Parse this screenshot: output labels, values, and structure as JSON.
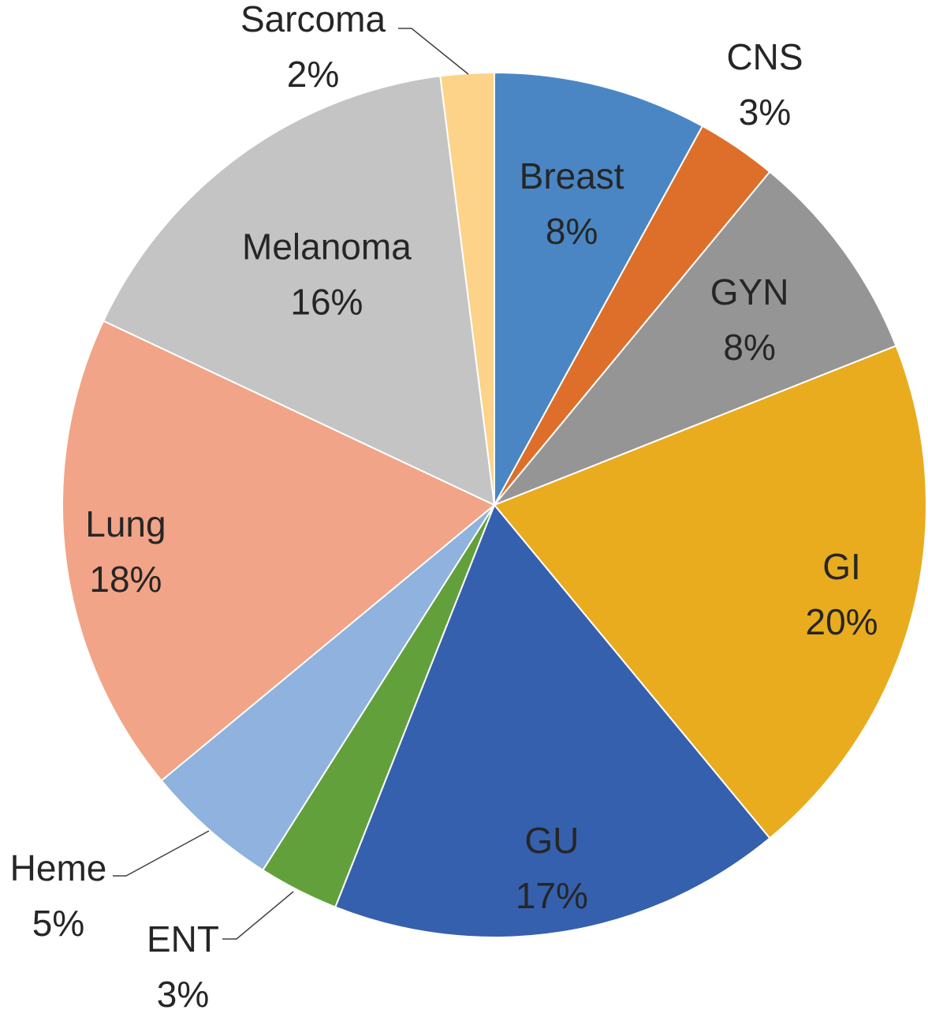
{
  "chart_data": {
    "type": "pie",
    "title": "",
    "start_angle_deg": 0,
    "direction": "clockwise",
    "slices": [
      {
        "name": "Breast",
        "value": 8,
        "label": "8%",
        "color": "#4a86c4"
      },
      {
        "name": "CNS",
        "value": 3,
        "label": "3%",
        "color": "#dd6f2a"
      },
      {
        "name": "GYN",
        "value": 8,
        "label": "8%",
        "color": "#959595"
      },
      {
        "name": "GI",
        "value": 20,
        "label": "20%",
        "color": "#e9ac1f"
      },
      {
        "name": "GU",
        "value": 17,
        "label": "17%",
        "color": "#3560ad"
      },
      {
        "name": "ENT",
        "value": 3,
        "label": "3%",
        "color": "#62a03c"
      },
      {
        "name": "Heme",
        "value": 5,
        "label": "5%",
        "color": "#8fb2de"
      },
      {
        "name": "Lung",
        "value": 18,
        "label": "18%",
        "color": "#f1a487"
      },
      {
        "name": "Melanoma",
        "value": 16,
        "label": "16%",
        "color": "#c4c4c4"
      },
      {
        "name": "Sarcoma",
        "value": 2,
        "label": "2%",
        "color": "#fcd389"
      }
    ]
  }
}
